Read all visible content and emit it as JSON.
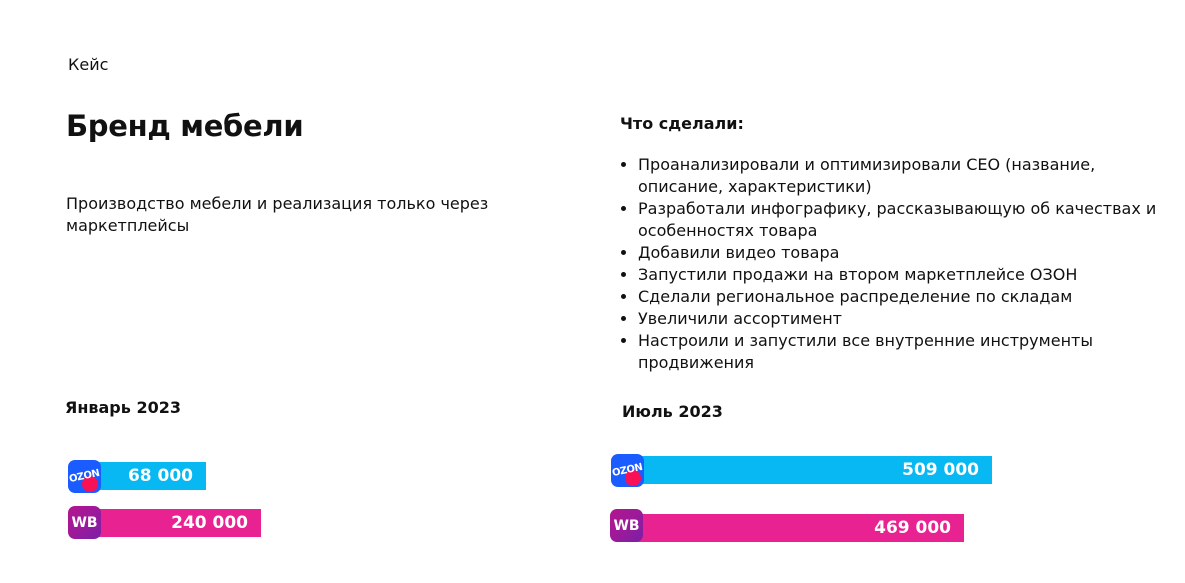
{
  "header": {
    "eyebrow": "Кейс",
    "title": "Бренд мебели",
    "subtitle": "Производство мебели и реализация только через маркетплейсы"
  },
  "actions": {
    "heading": "Что сделали:",
    "items": [
      "Проанализировали и оптимизировали СЕО (название, описание, характеристики)",
      "Разработали инфографику, рассказывающую об качествах и особенностях товара",
      "Добавили видео товара",
      "Запустили продажи на втором маркетплейсе ОЗОН",
      "Сделали региональное распределение по складам",
      "Увеличили ассортимент",
      "Настроили и запустили все внутренние инструменты продвижения"
    ]
  },
  "periods": [
    {
      "label": "Январь 2023",
      "bars": [
        {
          "marketplace": "ozon",
          "icon": "ozon-logo-icon",
          "value": 68000,
          "value_text": "68 000",
          "color": "#08b8f3"
        },
        {
          "marketplace": "wb",
          "icon": "wildberries-logo-icon",
          "logo_text": "WB",
          "value": 240000,
          "value_text": "240 000",
          "color": "#e82290"
        }
      ]
    },
    {
      "label": "Июль 2023",
      "bars": [
        {
          "marketplace": "ozon",
          "icon": "ozon-logo-icon",
          "value": 509000,
          "value_text": "509 000",
          "color": "#08b8f3"
        },
        {
          "marketplace": "wb",
          "icon": "wildberries-logo-icon",
          "logo_text": "WB",
          "value": 469000,
          "value_text": "469 000",
          "color": "#e82290"
        }
      ]
    }
  ],
  "ozon_logo_text": "OZON"
}
